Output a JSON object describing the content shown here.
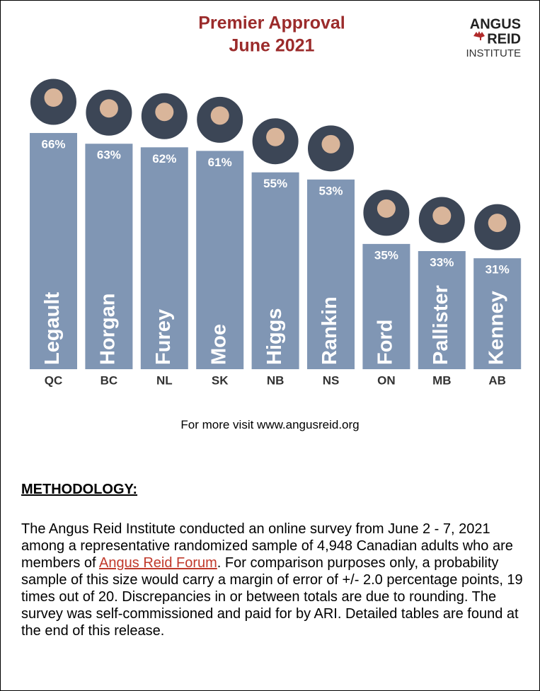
{
  "chart_data": {
    "type": "bar",
    "title": "Premier Approval",
    "subtitle": "June 2021",
    "categories": [
      "QC",
      "BC",
      "NL",
      "SK",
      "NB",
      "NS",
      "ON",
      "MB",
      "AB"
    ],
    "bar_labels": [
      "Legault",
      "Horgan",
      "Furey",
      "Moe",
      "Higgs",
      "Rankin",
      "Ford",
      "Pallister",
      "Kenney"
    ],
    "values": [
      66,
      63,
      62,
      61,
      55,
      53,
      35,
      33,
      31
    ],
    "value_labels": [
      "66%",
      "63%",
      "62%",
      "61%",
      "55%",
      "53%",
      "35%",
      "33%",
      "31%"
    ],
    "color": "#8096b4"
  },
  "logo": {
    "line1": "ANGUS",
    "line2": "REID",
    "line3": "INSTITUTE"
  },
  "footer_note": "For more visit www.angusreid.org",
  "methodology": {
    "heading": "METHODOLOGY:",
    "text_before_link": "The Angus Reid Institute conducted an online survey from June 2 - 7, 2021 among a representative randomized sample of 4,948 Canadian adults who are members of ",
    "link": "Angus Reid Forum",
    "text_after_link": ". For comparison purposes only, a probability sample of this size would carry a margin of error of +/- 2.0 percentage points, 19 times out of 20. Discrepancies in or between totals are due to rounding. The survey was self-commissioned and paid for by ARI. Detailed tables are found at the end of this release."
  }
}
